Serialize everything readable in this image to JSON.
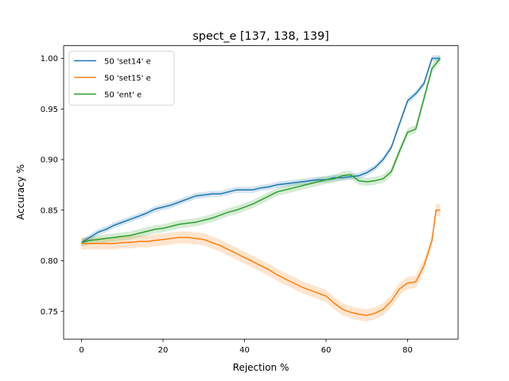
{
  "chart_data": {
    "type": "line",
    "title": "spect_e  [137, 138, 139]",
    "xlabel": "Rejection %",
    "ylabel": "Accuracy %",
    "xlim": [
      -4.4,
      92.4
    ],
    "ylim": [
      0.7225,
      1.0125
    ],
    "xticks": [
      0,
      20,
      40,
      60,
      80
    ],
    "xtick_labels": [
      "0",
      "20",
      "40",
      "60",
      "80"
    ],
    "yticks": [
      0.75,
      0.8,
      0.85,
      0.9,
      0.95,
      1.0
    ],
    "ytick_labels": [
      "0.75",
      "0.80",
      "0.85",
      "0.90",
      "0.95",
      "1.00"
    ],
    "grid": false,
    "legend_position": "upper-left",
    "series": [
      {
        "name": "50 'set14' e",
        "color": "#1f77b4",
        "band": 0.003,
        "points": [
          [
            0,
            0.818
          ],
          [
            2,
            0.823
          ],
          [
            4,
            0.828
          ],
          [
            6,
            0.831
          ],
          [
            8,
            0.835
          ],
          [
            10,
            0.838
          ],
          [
            12,
            0.841
          ],
          [
            14,
            0.844
          ],
          [
            16,
            0.847
          ],
          [
            18,
            0.851
          ],
          [
            20,
            0.853
          ],
          [
            22,
            0.855
          ],
          [
            24,
            0.858
          ],
          [
            26,
            0.861
          ],
          [
            28,
            0.864
          ],
          [
            30,
            0.865
          ],
          [
            32,
            0.866
          ],
          [
            34,
            0.866
          ],
          [
            36,
            0.868
          ],
          [
            38,
            0.87
          ],
          [
            40,
            0.87
          ],
          [
            42,
            0.87
          ],
          [
            44,
            0.872
          ],
          [
            46,
            0.873
          ],
          [
            48,
            0.875
          ],
          [
            50,
            0.876
          ],
          [
            52,
            0.877
          ],
          [
            54,
            0.878
          ],
          [
            56,
            0.879
          ],
          [
            58,
            0.88
          ],
          [
            60,
            0.88
          ],
          [
            62,
            0.882
          ],
          [
            64,
            0.882
          ],
          [
            66,
            0.883
          ],
          [
            68,
            0.884
          ],
          [
            70,
            0.887
          ],
          [
            72,
            0.892
          ],
          [
            74,
            0.9
          ],
          [
            76,
            0.912
          ],
          [
            78,
            0.935
          ],
          [
            80,
            0.958
          ],
          [
            82,
            0.965
          ],
          [
            84,
            0.975
          ],
          [
            86,
            1.0
          ],
          [
            88,
            1.0
          ]
        ]
      },
      {
        "name": "50 'set15' e",
        "color": "#ff7f0e",
        "band": 0.006,
        "points": [
          [
            0,
            0.817
          ],
          [
            2,
            0.817
          ],
          [
            4,
            0.817
          ],
          [
            6,
            0.817
          ],
          [
            8,
            0.817
          ],
          [
            10,
            0.818
          ],
          [
            12,
            0.818
          ],
          [
            14,
            0.819
          ],
          [
            16,
            0.819
          ],
          [
            18,
            0.82
          ],
          [
            20,
            0.821
          ],
          [
            22,
            0.822
          ],
          [
            24,
            0.823
          ],
          [
            26,
            0.823
          ],
          [
            28,
            0.822
          ],
          [
            30,
            0.821
          ],
          [
            32,
            0.818
          ],
          [
            34,
            0.815
          ],
          [
            36,
            0.811
          ],
          [
            38,
            0.807
          ],
          [
            40,
            0.803
          ],
          [
            42,
            0.799
          ],
          [
            44,
            0.795
          ],
          [
            46,
            0.791
          ],
          [
            48,
            0.786
          ],
          [
            50,
            0.782
          ],
          [
            52,
            0.778
          ],
          [
            54,
            0.774
          ],
          [
            56,
            0.771
          ],
          [
            58,
            0.768
          ],
          [
            60,
            0.765
          ],
          [
            62,
            0.758
          ],
          [
            64,
            0.752
          ],
          [
            66,
            0.749
          ],
          [
            68,
            0.747
          ],
          [
            70,
            0.746
          ],
          [
            72,
            0.748
          ],
          [
            74,
            0.752
          ],
          [
            76,
            0.76
          ],
          [
            78,
            0.772
          ],
          [
            80,
            0.778
          ],
          [
            82,
            0.779
          ],
          [
            84,
            0.795
          ],
          [
            86,
            0.82
          ],
          [
            87,
            0.85
          ],
          [
            88,
            0.85
          ]
        ]
      },
      {
        "name": "50 'ent' e",
        "color": "#2ca02c",
        "band": 0.004,
        "points": [
          [
            0,
            0.818
          ],
          [
            2,
            0.82
          ],
          [
            4,
            0.821
          ],
          [
            6,
            0.822
          ],
          [
            8,
            0.823
          ],
          [
            10,
            0.824
          ],
          [
            12,
            0.825
          ],
          [
            14,
            0.827
          ],
          [
            16,
            0.829
          ],
          [
            18,
            0.831
          ],
          [
            20,
            0.832
          ],
          [
            22,
            0.834
          ],
          [
            24,
            0.836
          ],
          [
            26,
            0.837
          ],
          [
            28,
            0.838
          ],
          [
            30,
            0.84
          ],
          [
            32,
            0.842
          ],
          [
            34,
            0.845
          ],
          [
            36,
            0.848
          ],
          [
            38,
            0.85
          ],
          [
            40,
            0.853
          ],
          [
            42,
            0.856
          ],
          [
            44,
            0.86
          ],
          [
            46,
            0.864
          ],
          [
            48,
            0.868
          ],
          [
            50,
            0.87
          ],
          [
            52,
            0.872
          ],
          [
            54,
            0.874
          ],
          [
            56,
            0.876
          ],
          [
            58,
            0.878
          ],
          [
            60,
            0.88
          ],
          [
            62,
            0.881
          ],
          [
            64,
            0.884
          ],
          [
            66,
            0.885
          ],
          [
            68,
            0.879
          ],
          [
            70,
            0.878
          ],
          [
            72,
            0.879
          ],
          [
            74,
            0.881
          ],
          [
            76,
            0.888
          ],
          [
            78,
            0.908
          ],
          [
            80,
            0.927
          ],
          [
            82,
            0.93
          ],
          [
            84,
            0.96
          ],
          [
            86,
            0.99
          ],
          [
            88,
            1.0
          ]
        ]
      }
    ]
  }
}
